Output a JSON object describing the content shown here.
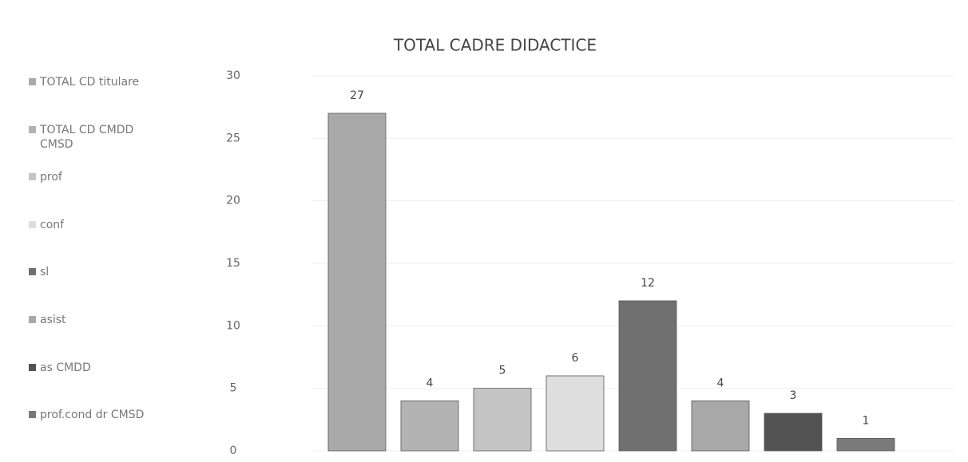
{
  "chart_data": {
    "type": "bar",
    "title": "TOTAL CADRE DIDACTICE",
    "categories": [
      null
    ],
    "series": [
      {
        "name": "TOTAL CD titulare",
        "color": "#a9a9a9",
        "values": [
          27
        ]
      },
      {
        "name": "TOTAL CD CMDD CMSD",
        "color": "#b3b3b3",
        "values": [
          4
        ]
      },
      {
        "name": "prof",
        "color": "#c4c4c4",
        "values": [
          5
        ]
      },
      {
        "name": "conf",
        "color": "#dedede",
        "values": [
          6
        ]
      },
      {
        "name": "sl",
        "color": "#707070",
        "values": [
          12
        ]
      },
      {
        "name": "asist",
        "color": "#a8a8a8",
        "values": [
          4
        ]
      },
      {
        "name": "as CMDD",
        "color": "#525252",
        "values": [
          3
        ]
      },
      {
        "name": "prof.cond dr CMSD",
        "color": "#7a7a7a",
        "values": [
          1
        ]
      }
    ],
    "ylim": [
      0,
      30
    ],
    "yticks": [
      0,
      5,
      10,
      15,
      20,
      25,
      30
    ],
    "grid": true,
    "legend": "left"
  }
}
